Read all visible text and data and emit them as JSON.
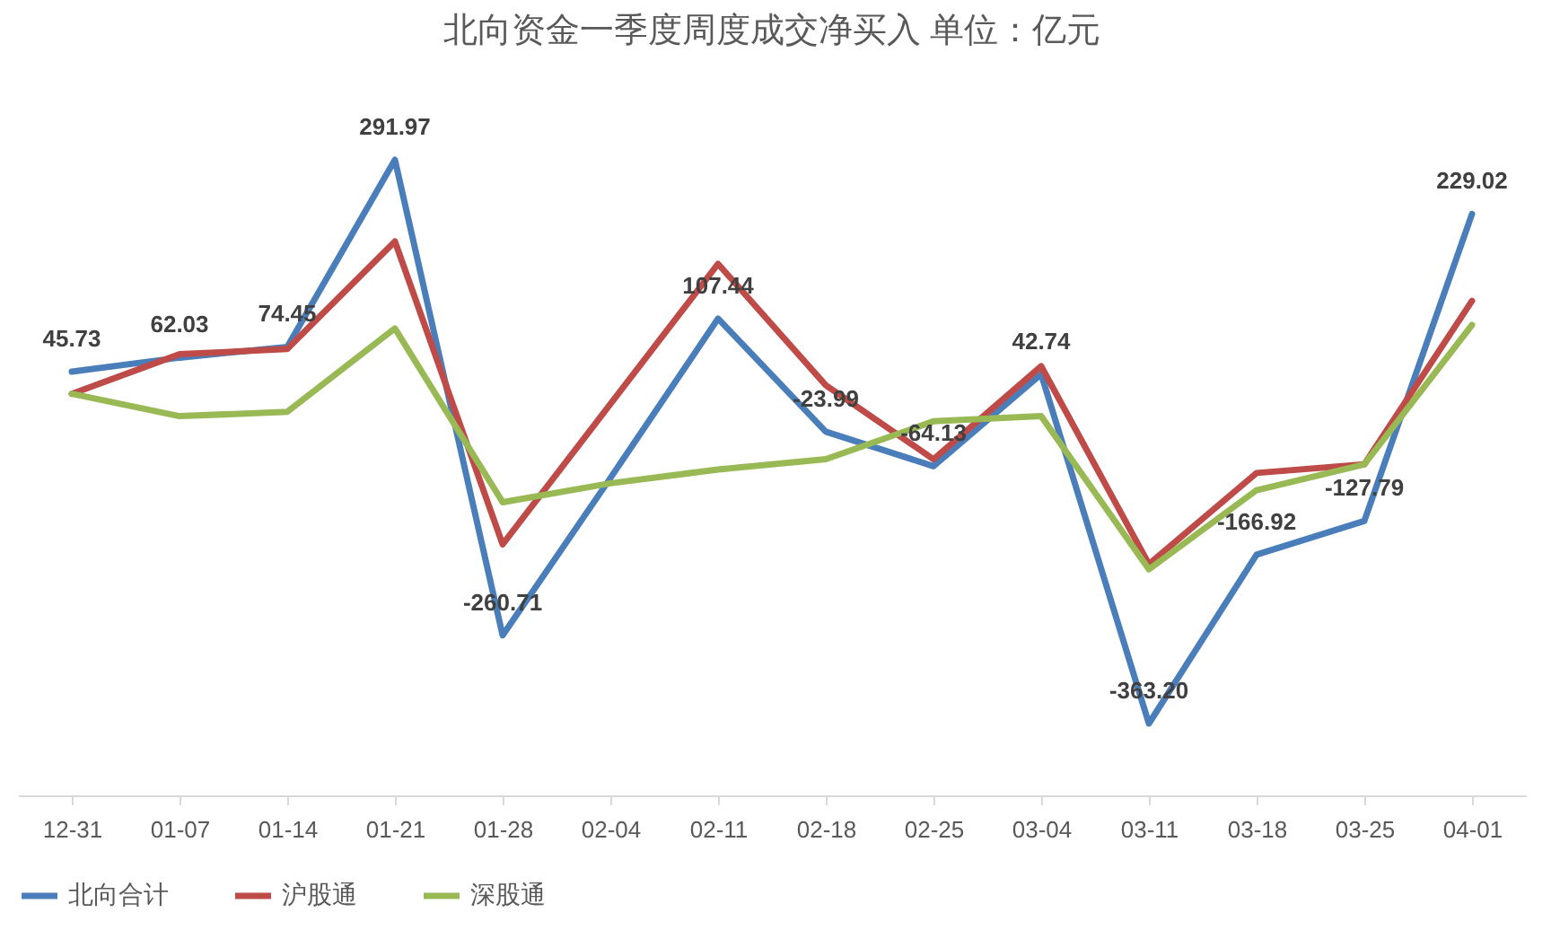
{
  "chart_data": {
    "type": "line",
    "title": "北向资金一季度周度成交净买入  单位：亿元",
    "categories": [
      "12-31",
      "01-07",
      "01-14",
      "01-21",
      "01-28",
      "02-04",
      "02-11",
      "02-18",
      "02-25",
      "03-04",
      "03-11",
      "03-18",
      "03-25",
      "04-01"
    ],
    "series": [
      {
        "name": "北向合计",
        "color": "#4a7ebb",
        "values": [
          45.73,
          62.03,
          74.45,
          291.97,
          -260.71,
          -78,
          107.44,
          -23.99,
          -64.13,
          42.74,
          -363.2,
          -166.92,
          -127.79,
          229.02
        ],
        "value_labels": [
          "45.73",
          "62.03",
          "74.45",
          "291.97",
          "-260.71",
          null,
          "107.44",
          "-23.99",
          "-64.13",
          "42.74",
          "-363.20",
          "-166.92",
          "-127.79",
          "229.02"
        ]
      },
      {
        "name": "沪股通",
        "color": "#be4b48",
        "values": [
          20,
          66,
          72,
          197,
          -155,
          8,
          171,
          30,
          -56,
          52,
          -178,
          -72,
          -62,
          128
        ]
      },
      {
        "name": "深股通",
        "color": "#98b954",
        "values": [
          20,
          -6,
          -1,
          96,
          -106,
          -84,
          -68,
          -56,
          -12,
          -6,
          -184,
          -92,
          -62,
          100
        ]
      }
    ],
    "tick_labels": "x",
    "legend": "bottom",
    "grid": false,
    "marker": "none",
    "line_style": "solid"
  }
}
